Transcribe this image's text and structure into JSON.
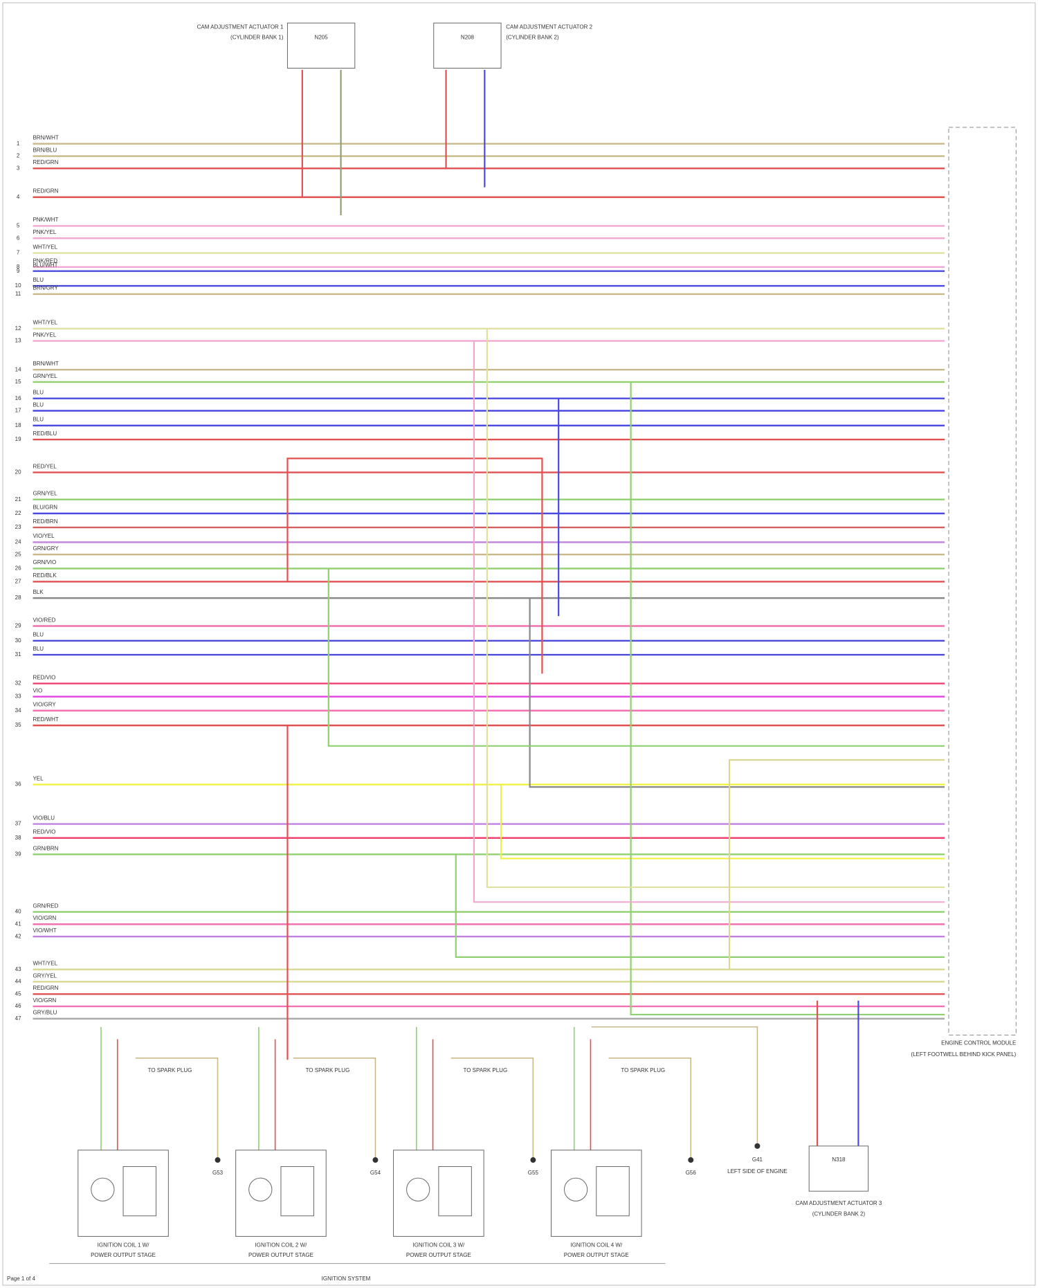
{
  "actuators_top": [
    {
      "label": "CAM ADJUSTMENT ACTUATOR 1",
      "sub": "(CYLINDER BANK 1)",
      "code": "N205"
    },
    {
      "label": "CAM ADJUSTMENT ACTUATOR 2",
      "sub": "(CYLINDER BANK 2)",
      "code": "N208"
    }
  ],
  "wires": [
    {
      "pin": "1",
      "label": "BRN/WHT",
      "color": "#c8b88a"
    },
    {
      "pin": "2",
      "label": "BRN/BLU",
      "color": "#c8b88a"
    },
    {
      "pin": "3",
      "label": "RED/GRN",
      "color": "#e05050"
    },
    {
      "pin": "4",
      "label": "RED/GRN",
      "color": "#e05050"
    },
    {
      "pin": "5",
      "label": "PNK/WHT",
      "color": "#f0a8d0"
    },
    {
      "pin": "6",
      "label": "PNK/YEL",
      "color": "#f0a8d0"
    },
    {
      "pin": "7",
      "label": "WHT/YEL",
      "color": "#e0e0a0"
    },
    {
      "pin": "8",
      "label": "PNK/RED",
      "color": "#f0a8d0"
    },
    {
      "pin": "9",
      "label": "BLU/WHT",
      "color": "#4a4ae0"
    },
    {
      "pin": "10",
      "label": "BLU",
      "color": "#4a4ae0"
    },
    {
      "pin": "11",
      "label": "BRN/GRY",
      "color": "#c8b88a"
    },
    {
      "pin": "12",
      "label": "WHT/YEL",
      "color": "#e0e0a0"
    },
    {
      "pin": "13",
      "label": "PNK/YEL",
      "color": "#f0a8d0"
    },
    {
      "pin": "14",
      "label": "BRN/WHT",
      "color": "#c8b88a"
    },
    {
      "pin": "15",
      "label": "GRN/YEL",
      "color": "#90d070"
    },
    {
      "pin": "16",
      "label": "BLU",
      "color": "#4a4ae0"
    },
    {
      "pin": "17",
      "label": "BLU",
      "color": "#4a4ae0"
    },
    {
      "pin": "18",
      "label": "BLU",
      "color": "#4a4ae0"
    },
    {
      "pin": "19",
      "label": "RED/BLU",
      "color": "#e05050"
    },
    {
      "pin": "20",
      "label": "RED/YEL",
      "color": "#e05050"
    },
    {
      "pin": "21",
      "label": "GRN/YEL",
      "color": "#90d070"
    },
    {
      "pin": "22",
      "label": "BLU/GRN",
      "color": "#4a4ae0"
    },
    {
      "pin": "23",
      "label": "RED/BRN",
      "color": "#d06060"
    },
    {
      "pin": "24",
      "label": "VIO/YEL",
      "color": "#c080e0"
    },
    {
      "pin": "25",
      "label": "GRN/GRY",
      "color": "#c8b88a"
    },
    {
      "pin": "26",
      "label": "GRN/VIO",
      "color": "#90d070"
    },
    {
      "pin": "27",
      "label": "RED/BLK",
      "color": "#e05050"
    },
    {
      "pin": "28",
      "label": "BLK",
      "color": "#888888"
    },
    {
      "pin": "29",
      "label": "VIO/RED",
      "color": "#f070b0"
    },
    {
      "pin": "30",
      "label": "BLU",
      "color": "#4a4ae0"
    },
    {
      "pin": "31",
      "label": "BLU",
      "color": "#4a4ae0"
    },
    {
      "pin": "32",
      "label": "RED/VIO",
      "color": "#f04070"
    },
    {
      "pin": "33",
      "label": "VIO",
      "color": "#e040e0"
    },
    {
      "pin": "34",
      "label": "VIO/GRY",
      "color": "#f070b0"
    },
    {
      "pin": "35",
      "label": "RED/WHT",
      "color": "#e05050"
    },
    {
      "pin": "36",
      "label": "YEL",
      "color": "#f0f040"
    },
    {
      "pin": "37",
      "label": "VIO/BLU",
      "color": "#c080e0"
    },
    {
      "pin": "38",
      "label": "RED/VIO",
      "color": "#f04070"
    },
    {
      "pin": "39",
      "label": "GRN/BRN",
      "color": "#90d070"
    },
    {
      "pin": "40",
      "label": "GRN/RED",
      "color": "#90d070"
    },
    {
      "pin": "41",
      "label": "VIO/GRN",
      "color": "#f070b0"
    },
    {
      "pin": "42",
      "label": "VIO/WHT",
      "color": "#c080e0"
    },
    {
      "pin": "43",
      "label": "WHT/YEL",
      "color": "#d8d890"
    },
    {
      "pin": "44",
      "label": "GRY/YEL",
      "color": "#d8d890"
    },
    {
      "pin": "45",
      "label": "RED/GRN",
      "color": "#e05050"
    },
    {
      "pin": "46",
      "label": "VIO/GRN",
      "color": "#f070b0"
    },
    {
      "pin": "47",
      "label": "GRY/BLU",
      "color": "#aaaaaa"
    }
  ],
  "ecm": {
    "label": "ENGINE CONTROL MODULE",
    "sub": "(LEFT FOOTWELL BEHIND KICK PANEL)"
  },
  "coils": [
    {
      "label": "IGNITION COIL 1 W/",
      "sub": "POWER OUTPUT STAGE",
      "ground": "G53"
    },
    {
      "label": "IGNITION COIL 2 W/",
      "sub": "POWER OUTPUT STAGE",
      "ground": "G54"
    },
    {
      "label": "IGNITION COIL 3 W/",
      "sub": "POWER OUTPUT STAGE",
      "ground": "G55"
    },
    {
      "label": "IGNITION COIL 4 W/",
      "sub": "POWER OUTPUT STAGE",
      "ground": "G56"
    }
  ],
  "spark_plug": "TO SPARK PLUG",
  "ground_main": {
    "code": "G41",
    "label": "LEFT SIDE OF ENGINE"
  },
  "actuator_bottom": {
    "label": "CAM ADJUSTMENT ACTUATOR 3",
    "sub": "(CYLINDER BANK 2)",
    "code": "N318"
  },
  "footer": {
    "left": "Page 1 of 4",
    "center": "IGNITION SYSTEM"
  }
}
